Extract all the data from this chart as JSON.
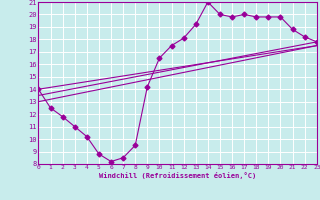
{
  "xlabel": "Windchill (Refroidissement éolien,°C)",
  "bg_color": "#c8ecec",
  "line_color": "#990099",
  "grid_color": "#ffffff",
  "xmin": 0,
  "xmax": 23,
  "ymin": 8,
  "ymax": 21,
  "yticks": [
    8,
    9,
    10,
    11,
    12,
    13,
    14,
    15,
    16,
    17,
    18,
    19,
    20,
    21
  ],
  "xticks": [
    0,
    1,
    2,
    3,
    4,
    5,
    6,
    7,
    8,
    9,
    10,
    11,
    12,
    13,
    14,
    15,
    16,
    17,
    18,
    19,
    20,
    21,
    22,
    23
  ],
  "series1_x": [
    0,
    1,
    2,
    3,
    4,
    5,
    6,
    7,
    8,
    9,
    10,
    11,
    12,
    13,
    14,
    15,
    16,
    17,
    18,
    19,
    20,
    21,
    22,
    23
  ],
  "series1_y": [
    14,
    12.5,
    11.8,
    11.0,
    10.2,
    8.8,
    8.2,
    8.5,
    9.5,
    14.2,
    16.5,
    17.5,
    18.1,
    19.2,
    21.0,
    20.0,
    19.8,
    20.0,
    19.8,
    19.8,
    19.8,
    18.8,
    18.2,
    17.8
  ],
  "line2_x": [
    0,
    23
  ],
  "line2_y": [
    13.0,
    17.5
  ],
  "line3_x": [
    0,
    23
  ],
  "line3_y": [
    13.5,
    17.8
  ],
  "line4_x": [
    0,
    23
  ],
  "line4_y": [
    14.0,
    17.5
  ]
}
